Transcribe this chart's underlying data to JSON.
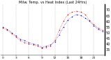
{
  "title": "Milw. Temp. vs Heat Index (Last 24Hrs)",
  "temp": [
    55,
    53,
    50,
    47,
    44,
    43,
    41,
    40,
    39,
    37,
    38,
    39,
    42,
    48,
    55,
    61,
    64,
    66,
    65,
    63,
    60,
    56,
    53,
    51
  ],
  "heat_index": [
    54,
    52,
    49,
    46,
    43,
    41,
    40,
    39,
    38,
    36,
    37,
    38,
    43,
    52,
    60,
    66,
    68,
    69,
    68,
    66,
    61,
    57,
    54,
    52
  ],
  "temp_color": "#0000bb",
  "heat_color": "#cc0000",
  "bg_color": "#ffffff",
  "grid_color": "#888888",
  "ylim": [
    30,
    75
  ],
  "ytick_vals": [
    35,
    40,
    45,
    50,
    55,
    60,
    65,
    70
  ],
  "ytick_labels": [
    "35",
    "40",
    "45",
    "50",
    "55",
    "60",
    "65",
    "70"
  ],
  "ylabel_fontsize": 3.5,
  "xlabel_fontsize": 3.2,
  "title_fontsize": 3.6,
  "n_points": 24,
  "xtick_every": 3
}
